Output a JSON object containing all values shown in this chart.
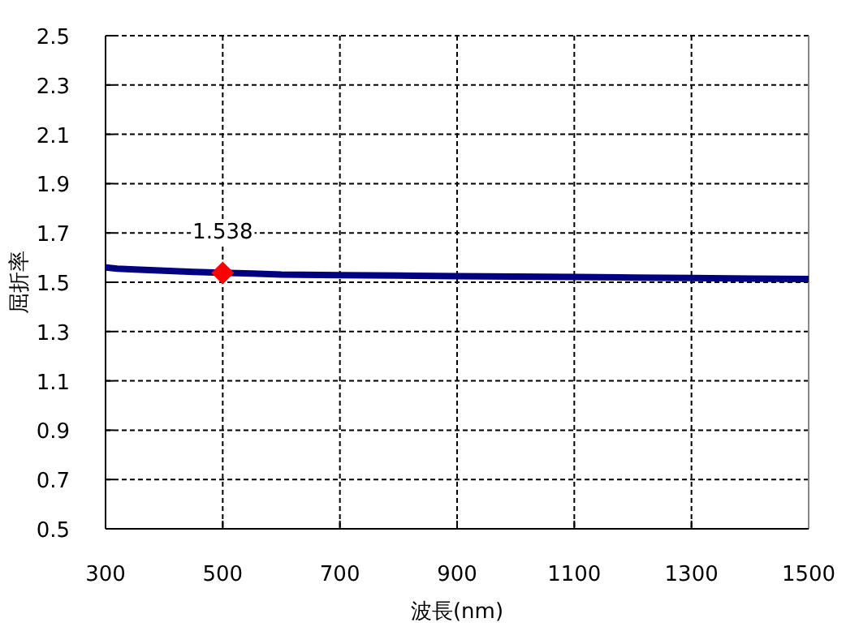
{
  "chart_data": {
    "type": "line",
    "xlabel": "波長(nm)",
    "ylabel": "屈折率",
    "xlim": [
      300,
      1500
    ],
    "ylim": [
      0.5,
      2.5
    ],
    "xticks": [
      300,
      500,
      700,
      900,
      1100,
      1300,
      1500
    ],
    "yticks": [
      0.5,
      0.7,
      0.9,
      1.1,
      1.3,
      1.5,
      1.7,
      1.9,
      2.1,
      2.3,
      2.5
    ],
    "grid": true,
    "line_style": "solid",
    "series": [
      {
        "type": "line",
        "color": "#000080",
        "x": [
          300,
          320,
          350,
          400,
          450,
          550,
          600,
          700,
          800,
          900,
          1000,
          1100,
          1200,
          1300,
          1400,
          1500
        ],
        "values": [
          1.56,
          1.555,
          1.552,
          1.547,
          1.542,
          1.535,
          1.531,
          1.529,
          1.527,
          1.525,
          1.523,
          1.521,
          1.519,
          1.517,
          1.515,
          1.513
        ]
      },
      {
        "type": "scatter",
        "color": "#ff0000",
        "marker": "diamond",
        "x": [
          500
        ],
        "values": [
          1.538
        ]
      }
    ],
    "annotations": [
      {
        "text": "1.538",
        "x": 500,
        "y": 1.538
      }
    ]
  }
}
